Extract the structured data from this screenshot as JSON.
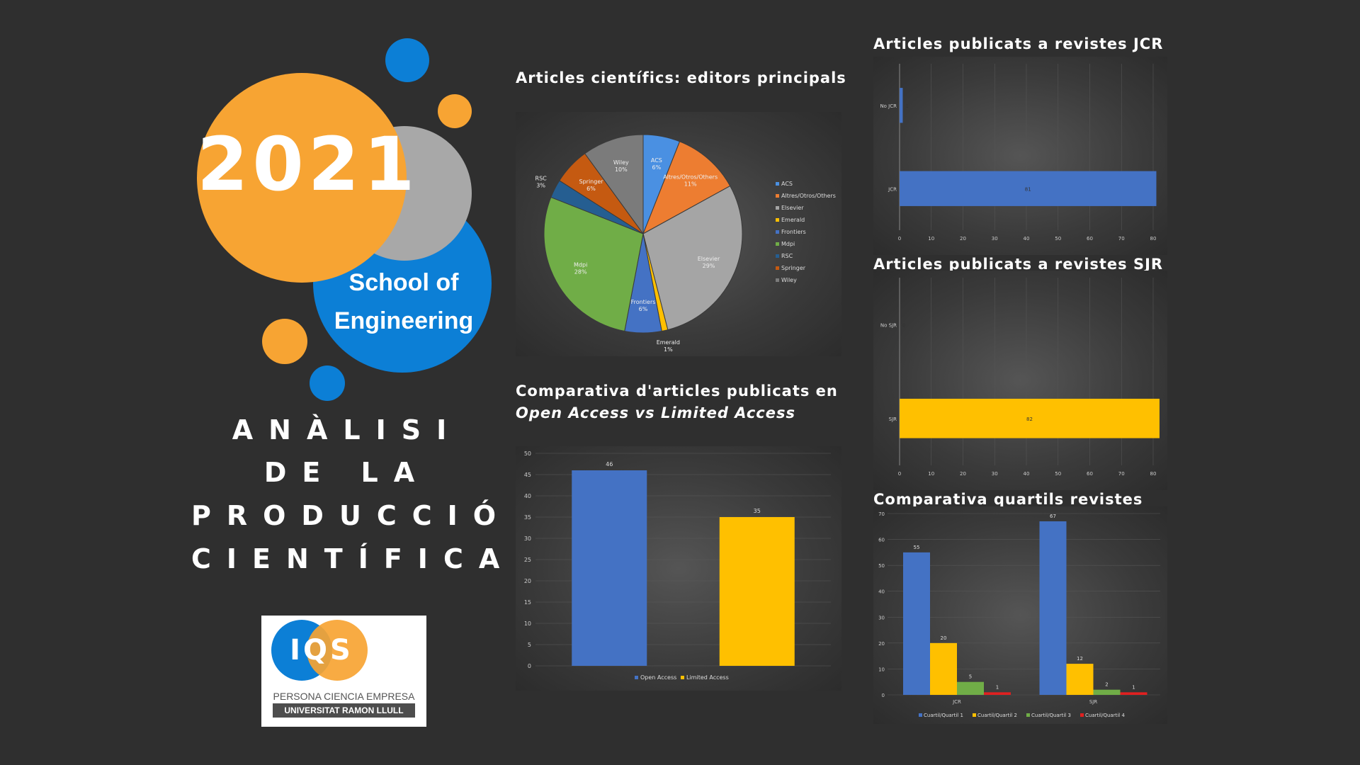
{
  "colors": {
    "orange": "#f7a433",
    "blue": "#0c7fd6",
    "grey": "#a8a8a8",
    "background": "#2f2f2f"
  },
  "left": {
    "year": "2021",
    "school_line1": "School of",
    "school_line2": "Engineering",
    "analysis_lines": [
      "ANÀLISI",
      "DE LA",
      "PRODUCCIÓ",
      "CIENTÍFICA"
    ],
    "logo": {
      "text": "IQS",
      "tagline": "PERSONA CIENCIA EMPRESA",
      "university": "UNIVERSITAT RAMON LLULL"
    }
  },
  "titles": {
    "pie": "Articles científics: editors principals",
    "oa_line1": "Comparativa d'articles publicats en",
    "oa_line2": "Open Access vs Limited Access",
    "jcr": "Articles publicats a revistes JCR",
    "sjr": "Articles publicats a revistes SJR",
    "quartiles": "Comparativa quartils revistes"
  },
  "chart_data": [
    {
      "id": "publishers",
      "type": "pie",
      "slices": [
        {
          "label": "ACS",
          "pct": "6%",
          "value": 6,
          "color": "#4a90e2"
        },
        {
          "label": "Altres/Otros/Others",
          "pct": "11%",
          "value": 11,
          "color": "#ed7d31"
        },
        {
          "label": "Elsevier",
          "pct": "29%",
          "value": 29,
          "color": "#a5a5a5"
        },
        {
          "label": "Emerald",
          "pct": "1%",
          "value": 1,
          "color": "#ffc000"
        },
        {
          "label": "Frontiers",
          "pct": "6%",
          "value": 6,
          "color": "#4472c4"
        },
        {
          "label": "Mdpi",
          "pct": "28%",
          "value": 28,
          "color": "#70ad47"
        },
        {
          "label": "RSC",
          "pct": "3%",
          "value": 3,
          "color": "#255e91"
        },
        {
          "label": "Springer",
          "pct": "6%",
          "value": 6,
          "color": "#c55a11"
        },
        {
          "label": "Wiley",
          "pct": "10%",
          "value": 10,
          "color": "#7b7b7b"
        }
      ],
      "legend": "right"
    },
    {
      "id": "access",
      "type": "bar",
      "categories": [
        "Open Access",
        "Limited Access"
      ],
      "values": [
        46,
        35
      ],
      "colors": [
        "#4472c4",
        "#ffc000"
      ],
      "ylim": [
        0,
        50
      ],
      "yticks": [
        0,
        5,
        10,
        15,
        20,
        25,
        30,
        35,
        40,
        45,
        50
      ],
      "legend": "bottom"
    },
    {
      "id": "jcr",
      "type": "bar",
      "orientation": "horizontal",
      "categories": [
        "No JCR",
        "JCR"
      ],
      "values": [
        1,
        81
      ],
      "color": "#4472c4",
      "xlim": [
        0,
        80
      ],
      "xticks": [
        0,
        10,
        20,
        30,
        40,
        50,
        60,
        70,
        80
      ]
    },
    {
      "id": "sjr",
      "type": "bar",
      "orientation": "horizontal",
      "categories": [
        "No SJR",
        "SJR"
      ],
      "values": [
        0,
        82
      ],
      "color": "#ffc000",
      "xlim": [
        0,
        80
      ],
      "xticks": [
        0,
        10,
        20,
        30,
        40,
        50,
        60,
        70,
        80
      ]
    },
    {
      "id": "quartiles",
      "type": "bar",
      "categories": [
        "JCR",
        "SJR"
      ],
      "series": [
        {
          "name": "Cuartil/Quartil 1",
          "values": [
            55,
            67
          ],
          "color": "#4472c4"
        },
        {
          "name": "Cuartil/Quartil 2",
          "values": [
            20,
            12
          ],
          "color": "#ffc000"
        },
        {
          "name": "Cuartil/Quartil 3",
          "values": [
            5,
            2
          ],
          "color": "#70ad47"
        },
        {
          "name": "Cuartil/Quartil 4",
          "values": [
            1,
            1
          ],
          "color": "#e02020"
        }
      ],
      "ylim": [
        0,
        70
      ],
      "yticks": [
        0,
        10,
        20,
        30,
        40,
        50,
        60,
        70
      ],
      "legend": "bottom"
    }
  ]
}
